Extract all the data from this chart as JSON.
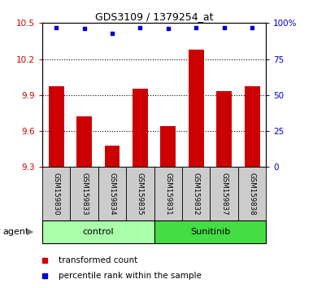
{
  "title": "GDS3109 / 1379254_at",
  "samples": [
    "GSM159830",
    "GSM159833",
    "GSM159834",
    "GSM159835",
    "GSM159831",
    "GSM159832",
    "GSM159837",
    "GSM159838"
  ],
  "bar_values": [
    9.97,
    9.72,
    9.48,
    9.95,
    9.64,
    10.28,
    9.93,
    9.97
  ],
  "percentile_values": [
    97,
    96,
    93,
    97,
    96,
    97,
    97,
    97
  ],
  "bar_color": "#cc0000",
  "dot_color": "#0000cc",
  "ylim_left": [
    9.3,
    10.5
  ],
  "ylim_right": [
    0,
    100
  ],
  "yticks_left": [
    9.3,
    9.6,
    9.9,
    10.2,
    10.5
  ],
  "yticks_right": [
    0,
    25,
    50,
    75,
    100
  ],
  "grid_values": [
    9.6,
    9.9,
    10.2
  ],
  "control_label": "control",
  "sunitinib_label": "Sunitinib",
  "agent_label": "agent",
  "legend_bar_label": "transformed count",
  "legend_dot_label": "percentile rank within the sample",
  "control_color": "#aaffaa",
  "sunitinib_color": "#44dd44",
  "label_area_color": "#cccccc",
  "n_control": 4,
  "n_sunitinib": 4
}
